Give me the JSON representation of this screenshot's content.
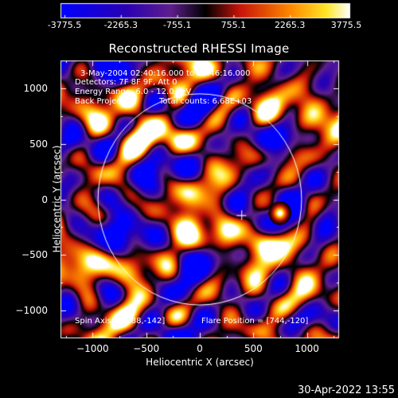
{
  "title": "Reconstructed RHESSI Image",
  "colorbar": {
    "ticks": [
      "-3775.5",
      "-2265.3",
      "-755.1",
      "755.1",
      "2265.3",
      "3775.5"
    ],
    "min": -3775.5,
    "max": 3775.5
  },
  "info": {
    "time_range": "3-May-2004 02:40:16.000 to 02:46:16.000",
    "detectors": "Detectors: 7F 8F 9F, Att 0",
    "energy": "Energy Range: 6.0 - 12.0 keV",
    "method": "Back Projection",
    "counts": "Total counts: 6.68E+03",
    "spin_axis": "Spin Axis = [388,-142]",
    "flare_position": "Flare Position = [744,-120]"
  },
  "chart_data": {
    "type": "heatmap",
    "title": "Reconstructed RHESSI Image",
    "xlabel": "Heliocentric X (arcsec)",
    "ylabel": "Heliocentric Y (arcsec)",
    "xlim": [
      -1300,
      1300
    ],
    "ylim": [
      -1250,
      1250
    ],
    "xticks": [
      "−1000",
      "−500",
      "0",
      "500",
      "1000"
    ],
    "yticks": [
      "1000",
      "500",
      "0",
      "−500",
      "−1000"
    ],
    "xtick_values": [
      -1000,
      -500,
      0,
      500,
      1000
    ],
    "ytick_values": [
      1000,
      500,
      0,
      -500,
      -1000
    ],
    "solar_limb_radius": 950,
    "spin_axis": [
      388,
      -142
    ],
    "flare_position": [
      744,
      -120
    ],
    "colormap": "blue-purple-red-yellow-white"
  },
  "timestamp": "30-Apr-2022 13:55"
}
